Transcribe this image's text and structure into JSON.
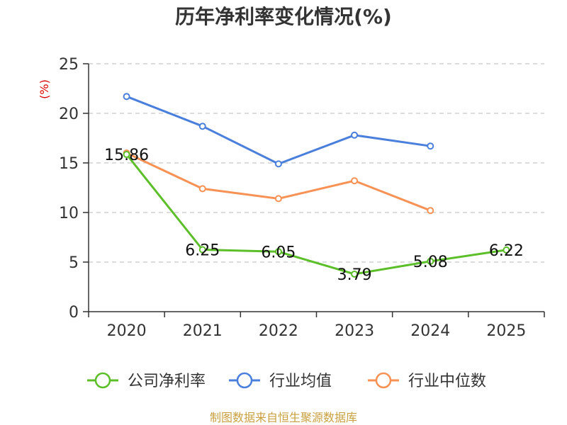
{
  "chart_data": {
    "type": "line",
    "title": "历年净利率变化情况(%)",
    "ylabel": "(%)",
    "ylim": [
      0,
      25
    ],
    "yticks": [
      0,
      5,
      10,
      15,
      20,
      25
    ],
    "grid": true,
    "categories": [
      "2020",
      "2021",
      "2022",
      "2023",
      "2024",
      "2025"
    ],
    "series": [
      {
        "name": "公司净利率",
        "color": "#5cbf2a",
        "values": [
          15.86,
          6.25,
          6.05,
          3.79,
          5.08,
          6.22
        ],
        "show_labels": true
      },
      {
        "name": "行业均值",
        "color": "#4a7fdb",
        "values": [
          21.7,
          18.7,
          14.9,
          17.8,
          16.7,
          null
        ],
        "show_labels": false
      },
      {
        "name": "行业中位数",
        "color": "#f79154",
        "values": [
          16.0,
          12.4,
          11.4,
          13.2,
          10.2,
          null
        ],
        "show_labels": false
      }
    ],
    "legend_position": "bottom"
  },
  "source_text": "制图数据来自恒生聚源数据库"
}
